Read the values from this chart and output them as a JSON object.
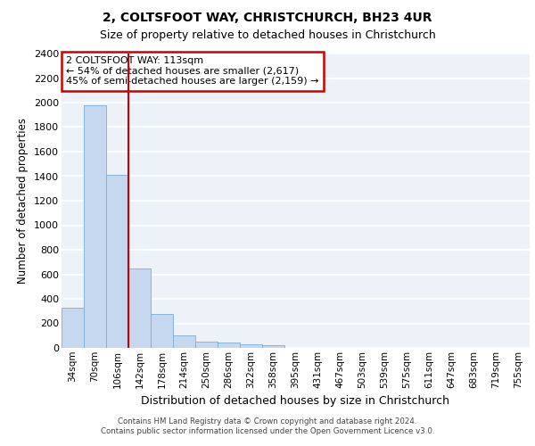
{
  "title_line1": "2, COLTSFOOT WAY, CHRISTCHURCH, BH23 4UR",
  "title_line2": "Size of property relative to detached houses in Christchurch",
  "xlabel": "Distribution of detached houses by size in Christchurch",
  "ylabel": "Number of detached properties",
  "bar_labels": [
    "34sqm",
    "70sqm",
    "106sqm",
    "142sqm",
    "178sqm",
    "214sqm",
    "250sqm",
    "286sqm",
    "322sqm",
    "358sqm",
    "395sqm",
    "431sqm",
    "467sqm",
    "503sqm",
    "539sqm",
    "575sqm",
    "611sqm",
    "647sqm",
    "683sqm",
    "719sqm",
    "755sqm"
  ],
  "bar_values": [
    325,
    1975,
    1410,
    650,
    275,
    100,
    50,
    45,
    30,
    25,
    0,
    0,
    0,
    0,
    0,
    0,
    0,
    0,
    0,
    0,
    0
  ],
  "bar_color": "#c5d8ef",
  "bar_edgecolor": "#7aaed4",
  "property_label": "2 COLTSFOOT WAY: 113sqm",
  "pct_smaller": "54% of detached houses are smaller (2,617)",
  "pct_larger": "45% of semi-detached houses are larger (2,159)",
  "vline_x": 2.5,
  "ylim": [
    0,
    2400
  ],
  "yticks": [
    0,
    200,
    400,
    600,
    800,
    1000,
    1200,
    1400,
    1600,
    1800,
    2000,
    2200,
    2400
  ],
  "annotation_box_color": "#cc0000",
  "background_color": "#edf2f9",
  "grid_color": "#ffffff",
  "footer_line1": "Contains HM Land Registry data © Crown copyright and database right 2024.",
  "footer_line2": "Contains public sector information licensed under the Open Government Licence v3.0."
}
